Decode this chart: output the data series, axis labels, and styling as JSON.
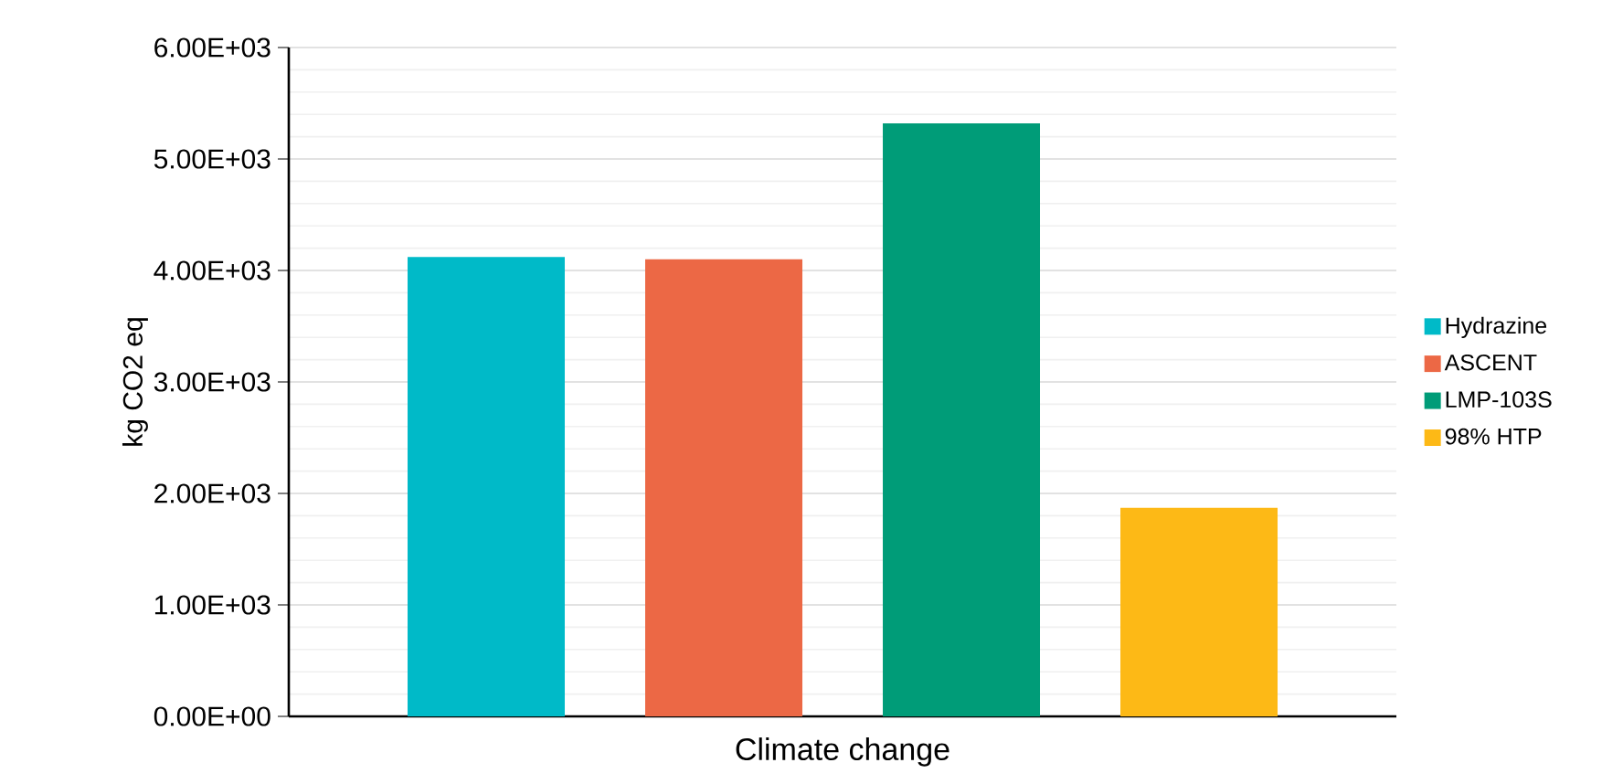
{
  "chart_data": {
    "type": "bar",
    "ylabel": "kg CO2 eq",
    "categories": [
      "Climate change"
    ],
    "series": [
      {
        "name": "Hydrazine",
        "color": "#00bac8",
        "values": [
          4120
        ]
      },
      {
        "name": "ASCENT",
        "color": "#ec6845",
        "values": [
          4100
        ]
      },
      {
        "name": "LMP-103S",
        "color": "#009c78",
        "values": [
          5320
        ]
      },
      {
        "name": "98% HTP",
        "color": "#fdb916",
        "values": [
          1870
        ]
      }
    ],
    "ylim": [
      0,
      6000
    ],
    "yticks": [
      {
        "value": 0,
        "label": "0.00E+00"
      },
      {
        "value": 1000,
        "label": "1.00E+03"
      },
      {
        "value": 2000,
        "label": "2.00E+03"
      },
      {
        "value": 3000,
        "label": "3.00E+03"
      },
      {
        "value": 4000,
        "label": "4.00E+03"
      },
      {
        "value": 5000,
        "label": "5.00E+03"
      },
      {
        "value": 6000,
        "label": "6.00E+03"
      }
    ],
    "grid": "y",
    "legend": "right"
  }
}
